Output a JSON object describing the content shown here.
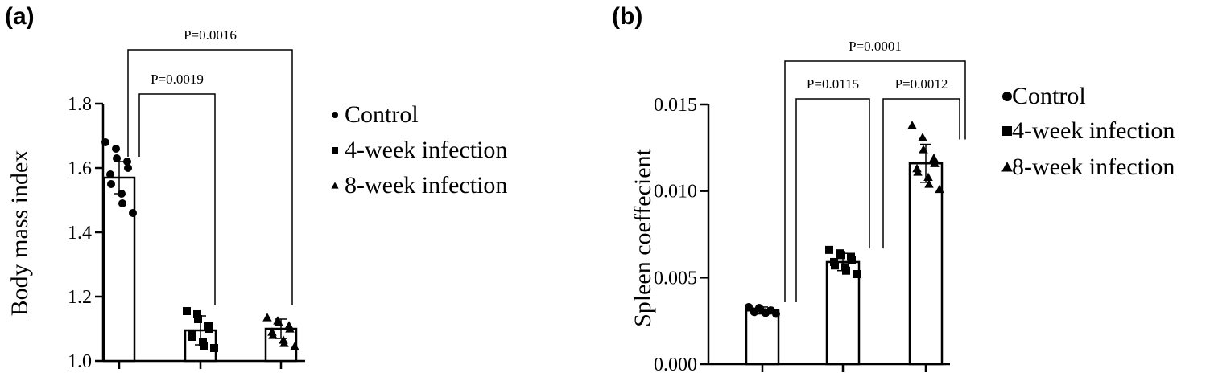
{
  "panels": [
    {
      "letter": "(a)",
      "ylabel": "Body mass index",
      "ylim": [
        1.0,
        1.8
      ],
      "yticks": [
        "1.0",
        "1.2",
        "1.4",
        "1.6",
        "1.8"
      ],
      "legend": [
        {
          "label": "Control",
          "marker": "circle"
        },
        {
          "label": "4-week infection",
          "marker": "square"
        },
        {
          "label": "8-week infection",
          "marker": "triangle"
        }
      ],
      "comparisons": [
        {
          "label": "P=0.0019",
          "from": 0,
          "to": 1
        },
        {
          "label": "P=0.0016",
          "from": 0,
          "to": 2
        }
      ]
    },
    {
      "letter": "(b)",
      "ylabel": "Spleen coeffecient",
      "ylim": [
        0.0,
        0.015
      ],
      "yticks": [
        "0.000",
        "0.005",
        "0.010",
        "0.015"
      ],
      "legend": [
        {
          "label": "Control",
          "marker": "circle"
        },
        {
          "label": "4-week infection",
          "marker": "square"
        },
        {
          "label": "8-week infection",
          "marker": "triangle"
        }
      ],
      "comparisons": [
        {
          "label": "P=0.0115",
          "from": 0,
          "to": 1
        },
        {
          "label": "P=0.0012",
          "from": 1,
          "to": 2
        },
        {
          "label": "P=0.0001",
          "from": 0,
          "to": 2
        }
      ]
    }
  ],
  "chart_data": [
    {
      "type": "bar",
      "categories": [
        "Control",
        "4-week infection",
        "8-week infection"
      ],
      "ylabel": "Body mass index",
      "ylim": [
        1.0,
        1.8
      ],
      "values": [
        1.57,
        1.095,
        1.1
      ],
      "error": [
        0.05,
        0.045,
        0.03
      ],
      "points": [
        [
          1.68,
          1.66,
          1.63,
          1.62,
          1.6,
          1.58,
          1.55,
          1.52,
          1.49,
          1.46
        ],
        [
          1.155,
          1.145,
          1.13,
          1.11,
          1.1,
          1.08,
          1.075,
          1.06,
          1.045,
          1.04
        ],
        [
          1.135,
          1.125,
          1.12,
          1.11,
          1.1,
          1.09,
          1.08,
          1.065,
          1.055,
          1.045
        ]
      ],
      "grid": false,
      "legend_position": "right"
    },
    {
      "type": "bar",
      "categories": [
        "Control",
        "4-week infection",
        "8-week infection"
      ],
      "ylabel": "Spleen coeffecient",
      "ylim": [
        0.0,
        0.015
      ],
      "values": [
        0.0031,
        0.0059,
        0.0116
      ],
      "error": [
        0.0002,
        0.0005,
        0.0011
      ],
      "points": [
        [
          0.0033,
          0.00325,
          0.0032,
          0.0031,
          0.0031,
          0.00305,
          0.003,
          0.003,
          0.00295,
          0.0029
        ],
        [
          0.0066,
          0.0064,
          0.0063,
          0.0062,
          0.006,
          0.0059,
          0.0057,
          0.0056,
          0.0054,
          0.0052
        ],
        [
          0.0138,
          0.0131,
          0.0124,
          0.0119,
          0.0116,
          0.0113,
          0.0111,
          0.0108,
          0.0104,
          0.0101
        ]
      ],
      "grid": false,
      "legend_position": "right"
    }
  ]
}
